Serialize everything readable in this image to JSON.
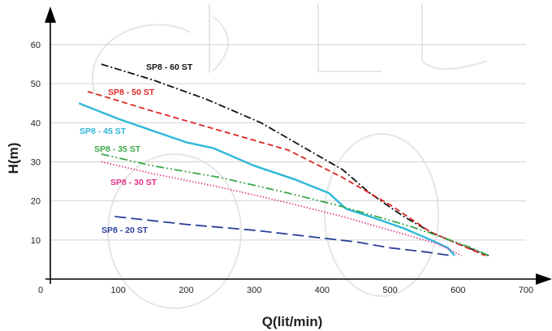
{
  "chart_data": {
    "type": "line",
    "xlabel": "Q(lit/min)",
    "ylabel": "H(m)",
    "xlim": [
      0,
      700
    ],
    "ylim": [
      0,
      65
    ],
    "x_ticks": [
      0,
      100,
      200,
      300,
      400,
      500,
      600,
      700
    ],
    "y_ticks": [
      10,
      20,
      30,
      40,
      50,
      60
    ],
    "grid": true,
    "series": [
      {
        "name": "SP8 - 60 ST",
        "color": "#111111",
        "dash": "dash-dot",
        "points": [
          [
            75,
            55
          ],
          [
            150,
            51
          ],
          [
            230,
            46
          ],
          [
            310,
            40
          ],
          [
            390,
            32
          ],
          [
            430,
            28
          ],
          [
            470,
            22
          ],
          [
            520,
            16
          ],
          [
            560,
            12
          ],
          [
            600,
            9
          ],
          [
            645,
            6
          ]
        ]
      },
      {
        "name": "SP8 - 50 ST",
        "color": "#e02424",
        "dash": "dashed",
        "points": [
          [
            55,
            48
          ],
          [
            150,
            43
          ],
          [
            250,
            38
          ],
          [
            350,
            33
          ],
          [
            430,
            26
          ],
          [
            500,
            19
          ],
          [
            560,
            12
          ],
          [
            600,
            9
          ],
          [
            640,
            6
          ]
        ]
      },
      {
        "name": "SP8 - 45 ST",
        "color": "#2cb8d8",
        "dash": "solid",
        "points": [
          [
            42,
            45
          ],
          [
            100,
            41
          ],
          [
            150,
            38
          ],
          [
            200,
            35
          ],
          [
            240,
            33.5
          ],
          [
            300,
            29
          ],
          [
            360,
            25.5
          ],
          [
            410,
            22
          ],
          [
            435,
            18
          ],
          [
            470,
            16
          ],
          [
            520,
            13
          ],
          [
            560,
            10
          ],
          [
            585,
            8
          ],
          [
            595,
            6
          ]
        ]
      },
      {
        "name": "SP8 - 35 ST",
        "color": "#3aa84c",
        "dash": "dash-dot-dot",
        "points": [
          [
            75,
            32
          ],
          [
            150,
            29
          ],
          [
            250,
            26
          ],
          [
            350,
            22
          ],
          [
            420,
            19
          ],
          [
            480,
            16
          ],
          [
            530,
            13.5
          ],
          [
            580,
            10.5
          ],
          [
            620,
            8
          ],
          [
            645,
            6
          ]
        ]
      },
      {
        "name": "SP8 - 30 ST",
        "color": "#e0308a",
        "dash": "dotted",
        "points": [
          [
            75,
            30
          ],
          [
            150,
            27
          ],
          [
            250,
            23.5
          ],
          [
            350,
            19.5
          ],
          [
            430,
            16
          ],
          [
            480,
            13.5
          ],
          [
            530,
            11
          ],
          [
            570,
            9
          ],
          [
            605,
            6
          ]
        ]
      },
      {
        "name": "SP8 - 20 ST",
        "color": "#283f9a",
        "dash": "long-dash",
        "points": [
          [
            95,
            16
          ],
          [
            200,
            14
          ],
          [
            300,
            12.5
          ],
          [
            400,
            10.5
          ],
          [
            450,
            9.5
          ],
          [
            500,
            8
          ],
          [
            550,
            7
          ],
          [
            590,
            6
          ]
        ]
      }
    ]
  }
}
